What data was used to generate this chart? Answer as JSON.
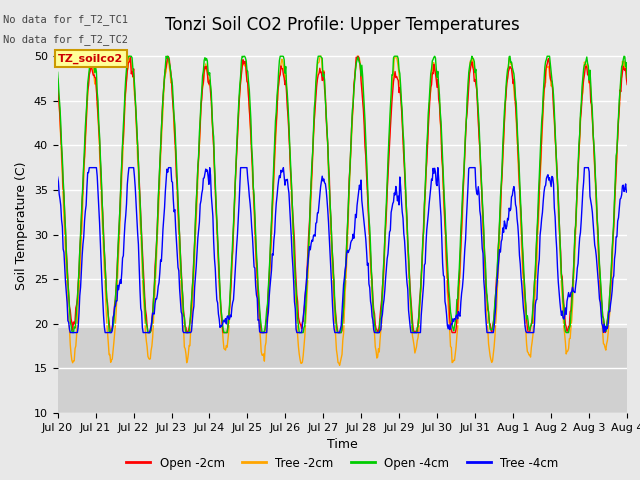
{
  "title": "Tonzi Soil CO2 Profile: Upper Temperatures",
  "xlabel": "Time",
  "ylabel": "Soil Temperature (C)",
  "ylim": [
    10,
    52
  ],
  "yticks": [
    10,
    15,
    20,
    25,
    30,
    35,
    40,
    45,
    50
  ],
  "annotation_lines": [
    "No data for f_T2_TC1",
    "No data for f_T2_TC2"
  ],
  "legend_box_label": "TZ_soilco2",
  "legend_items": [
    "Open -2cm",
    "Tree -2cm",
    "Open -4cm",
    "Tree -4cm"
  ],
  "legend_colors": [
    "#ff0000",
    "#ffa500",
    "#00cc00",
    "#0000ff"
  ],
  "x_tick_labels": [
    "Jul 20",
    "Jul 21",
    "Jul 22",
    "Jul 23",
    "Jul 24",
    "Jul 25",
    "Jul 26",
    "Jul 27",
    "Jul 28",
    "Jul 29",
    "Jul 30",
    "Jul 31",
    "Aug 1",
    "Aug 2",
    "Aug 3",
    "Aug 4"
  ],
  "n_days": 15,
  "points_per_day": 48,
  "background_color": "#e8e8e8",
  "plot_bg_color": "#e8e8e8",
  "shaded_band_color": "#d0d0d0",
  "grid_color": "#ffffff",
  "title_fontsize": 12,
  "axis_fontsize": 9,
  "tick_fontsize": 8,
  "figsize": [
    6.4,
    4.8
  ],
  "dpi": 100
}
